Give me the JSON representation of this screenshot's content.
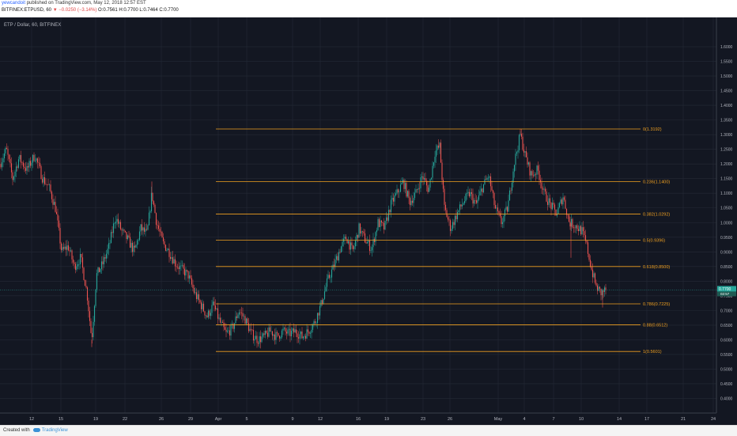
{
  "header": {
    "author": "yewcandoit",
    "published": " published on TradingView.com, May 12, 2018 12:57 EST",
    "symbol_line": "BITFINEX:ETPUSD, 60",
    "change": "▼ −0.0250 (−3.14%)",
    "ohlc": "O:0.7561  H:0.7700  L:0.7464  C:0.7700"
  },
  "footer": {
    "created_with": "Created with",
    "brand": "TradingView"
  },
  "colors": {
    "background": "#131722",
    "grid": "#242a36",
    "text": "#b2b5be",
    "up": "#26a69a",
    "down": "#ef5350",
    "fib": "#f0a020",
    "price_tag": "#26a69a"
  },
  "chart_data": {
    "type": "candlestick",
    "title": "ETP / Dollar, 60, BITFINEX",
    "ylim": [
      0.35,
      1.7
    ],
    "y_ticks": [
      "1.6000",
      "1.5500",
      "1.5000",
      "1.4500",
      "1.4000",
      "1.3500",
      "1.3000",
      "1.2500",
      "1.2000",
      "1.1500",
      "1.1000",
      "1.0500",
      "1.0000",
      "0.9500",
      "0.9000",
      "0.8500",
      "0.8000",
      "0.7500",
      "0.7000",
      "0.6500",
      "0.6000",
      "0.5500",
      "0.5000",
      "0.4500",
      "0.4000"
    ],
    "x_ticks": [
      "12",
      "15",
      "19",
      "22",
      "26",
      "29",
      "Apr",
      "5",
      "9",
      "12",
      "16",
      "19",
      "23",
      "26",
      "May",
      "4",
      "7",
      "10",
      "14",
      "17",
      "21",
      "24"
    ],
    "last_price": {
      "value": 0.77,
      "label": "0.7700",
      "countdown": "02:57"
    },
    "price_path": [
      [
        0,
        1.2
      ],
      [
        8,
        1.25
      ],
      [
        16,
        1.15
      ],
      [
        24,
        1.22
      ],
      [
        34,
        1.18
      ],
      [
        44,
        1.23
      ],
      [
        54,
        1.15
      ],
      [
        62,
        1.12
      ],
      [
        70,
        1.05
      ],
      [
        78,
        0.9
      ],
      [
        86,
        0.92
      ],
      [
        94,
        0.85
      ],
      [
        102,
        0.88
      ],
      [
        110,
        0.76
      ],
      [
        116,
        0.6
      ],
      [
        122,
        0.82
      ],
      [
        130,
        0.86
      ],
      [
        138,
        0.92
      ],
      [
        146,
        1.02
      ],
      [
        154,
        0.97
      ],
      [
        162,
        0.94
      ],
      [
        170,
        0.9
      ],
      [
        178,
        0.98
      ],
      [
        186,
        0.96
      ],
      [
        192,
        1.1
      ],
      [
        198,
        1.0
      ],
      [
        206,
        0.93
      ],
      [
        214,
        0.9
      ],
      [
        222,
        0.86
      ],
      [
        230,
        0.84
      ],
      [
        238,
        0.82
      ],
      [
        246,
        0.76
      ],
      [
        254,
        0.72
      ],
      [
        262,
        0.68
      ],
      [
        270,
        0.72
      ],
      [
        278,
        0.66
      ],
      [
        286,
        0.62
      ],
      [
        294,
        0.64
      ],
      [
        302,
        0.7
      ],
      [
        310,
        0.67
      ],
      [
        318,
        0.62
      ],
      [
        326,
        0.6
      ],
      [
        334,
        0.61
      ],
      [
        342,
        0.63
      ],
      [
        350,
        0.61
      ],
      [
        358,
        0.63
      ],
      [
        366,
        0.62
      ],
      [
        374,
        0.63
      ],
      [
        382,
        0.61
      ],
      [
        390,
        0.63
      ],
      [
        398,
        0.66
      ],
      [
        406,
        0.72
      ],
      [
        414,
        0.8
      ],
      [
        422,
        0.85
      ],
      [
        430,
        0.91
      ],
      [
        438,
        0.95
      ],
      [
        446,
        0.9
      ],
      [
        454,
        0.98
      ],
      [
        462,
        0.94
      ],
      [
        470,
        0.91
      ],
      [
        478,
        1.0
      ],
      [
        486,
        0.98
      ],
      [
        494,
        1.06
      ],
      [
        502,
        1.1
      ],
      [
        510,
        1.14
      ],
      [
        518,
        1.07
      ],
      [
        526,
        1.1
      ],
      [
        534,
        1.16
      ],
      [
        542,
        1.11
      ],
      [
        550,
        1.24
      ],
      [
        556,
        1.26
      ],
      [
        562,
        1.05
      ],
      [
        570,
        0.98
      ],
      [
        578,
        1.03
      ],
      [
        586,
        1.07
      ],
      [
        594,
        1.1
      ],
      [
        602,
        1.06
      ],
      [
        610,
        1.12
      ],
      [
        618,
        1.16
      ],
      [
        626,
        1.05
      ],
      [
        634,
        1.0
      ],
      [
        642,
        1.05
      ],
      [
        650,
        1.2
      ],
      [
        658,
        1.3
      ],
      [
        664,
        1.23
      ],
      [
        672,
        1.16
      ],
      [
        680,
        1.18
      ],
      [
        688,
        1.1
      ],
      [
        696,
        1.06
      ],
      [
        704,
        1.03
      ],
      [
        712,
        1.09
      ],
      [
        720,
        1.0
      ],
      [
        728,
        0.99
      ],
      [
        736,
        0.97
      ],
      [
        742,
        0.92
      ],
      [
        748,
        0.84
      ],
      [
        754,
        0.78
      ],
      [
        760,
        0.76
      ],
      [
        766,
        0.77
      ]
    ],
    "fib_levels": [
      {
        "level": 1.3192,
        "label": "0(1.3192)"
      },
      {
        "level": 1.14,
        "label": "0.236(1.1400)"
      },
      {
        "level": 1.0292,
        "label": "0.382(1.0292)"
      },
      {
        "level": 0.9396,
        "label": "0.5(0.9396)"
      },
      {
        "level": 0.85,
        "label": "0.618(0.8500)"
      },
      {
        "level": 0.7225,
        "label": "0.786(0.7225)"
      },
      {
        "level": 0.6512,
        "label": "0.88(0.6512)"
      },
      {
        "level": 0.5601,
        "label": "1(0.5601)"
      }
    ]
  }
}
